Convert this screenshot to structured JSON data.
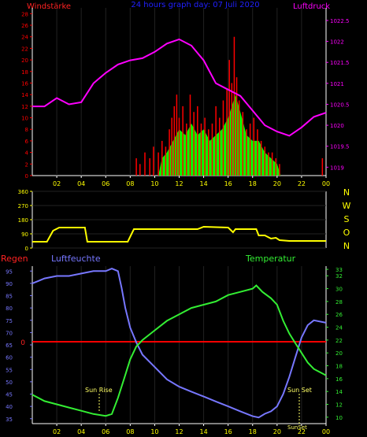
{
  "header": {
    "left_label": "Windstärke",
    "title": "24 hours graph day:  07 Juli 2020",
    "right_label": "Luftdruck"
  },
  "colors": {
    "wind": "#ff0000",
    "gust_fill": "#00ff00",
    "pressure": "#ff00ff",
    "direction": "#ffff00",
    "humidity": "#7777ff",
    "temperature": "#33ee33",
    "rain": "#ff0000",
    "axis": "#ffffff",
    "hour_labels": "#ffff00",
    "title": "#0000ff"
  },
  "x_ticks": [
    "02",
    "04",
    "06",
    "08",
    "10",
    "12",
    "14",
    "16",
    "18",
    "20",
    "22",
    "00"
  ],
  "wind_ticks": [
    "0",
    "2",
    "4",
    "6",
    "8",
    "10",
    "12",
    "14",
    "16",
    "18",
    "20",
    "22",
    "24",
    "26",
    "28"
  ],
  "pressure_ticks": [
    "1019",
    "1019.5",
    "1020",
    "1020.5",
    "1021",
    "1021.5",
    "1022",
    "1022.5"
  ],
  "direction_ticks": [
    "0",
    "90",
    "180",
    "270",
    "360"
  ],
  "direction_letters": [
    "N",
    "W",
    "S",
    "O",
    "N"
  ],
  "legend2": {
    "rain": "Regen",
    "humidity": "Luftfeuchte",
    "temperature": "Temperatur"
  },
  "humidity_ticks": [
    "35",
    "40",
    "45",
    "50",
    "55",
    "60",
    "65",
    "70",
    "75",
    "80",
    "85",
    "90",
    "95"
  ],
  "temp_ticks": [
    "10",
    "12",
    "14",
    "16",
    "18",
    "20",
    "22",
    "24",
    "26",
    "28",
    "30",
    "32",
    "33"
  ],
  "rain_zero_label": "0",
  "annotations": {
    "sunrise": "Sun Rise",
    "sunset": "Sun Set",
    "sunset_bottom": "SunSet"
  },
  "chart_data": [
    {
      "type": "bar+line",
      "title": "24 hours graph day:  07 Juli 2020",
      "x_unit": "hour",
      "xlim": [
        0,
        24
      ],
      "series": [
        {
          "name": "Windstärke",
          "kind": "gust-bars",
          "ylim": [
            0,
            29
          ],
          "points": [
            [
              8.5,
              3
            ],
            [
              8.8,
              2
            ],
            [
              9.2,
              4
            ],
            [
              9.6,
              3
            ],
            [
              9.9,
              5
            ],
            [
              10.3,
              4
            ],
            [
              10.6,
              6
            ],
            [
              10.9,
              5
            ],
            [
              11.2,
              8
            ],
            [
              11.4,
              10
            ],
            [
              11.6,
              12
            ],
            [
              11.8,
              14
            ],
            [
              12.0,
              10
            ],
            [
              12.3,
              12
            ],
            [
              12.6,
              9
            ],
            [
              12.9,
              14
            ],
            [
              13.2,
              11
            ],
            [
              13.5,
              12
            ],
            [
              13.8,
              9
            ],
            [
              14.1,
              10
            ],
            [
              14.4,
              8
            ],
            [
              14.7,
              9
            ],
            [
              15.0,
              12
            ],
            [
              15.3,
              10
            ],
            [
              15.6,
              13
            ],
            [
              15.9,
              15
            ],
            [
              16.1,
              20
            ],
            [
              16.3,
              16
            ],
            [
              16.5,
              24
            ],
            [
              16.7,
              17
            ],
            [
              16.9,
              13
            ],
            [
              17.2,
              11
            ],
            [
              17.5,
              8
            ],
            [
              17.8,
              9
            ],
            [
              18.1,
              10
            ],
            [
              18.4,
              8
            ],
            [
              18.7,
              6
            ],
            [
              19.0,
              5
            ],
            [
              19.3,
              4
            ],
            [
              19.6,
              4
            ],
            [
              19.9,
              3
            ],
            [
              20.2,
              2
            ],
            [
              23.7,
              3
            ]
          ]
        },
        {
          "name": "Windstärke (mittel)",
          "kind": "fill",
          "ylim": [
            0,
            29
          ],
          "points": [
            [
              10.3,
              0
            ],
            [
              10.6,
              3
            ],
            [
              11.0,
              4
            ],
            [
              11.5,
              6
            ],
            [
              12.0,
              8
            ],
            [
              12.5,
              7
            ],
            [
              13.0,
              9
            ],
            [
              13.5,
              7
            ],
            [
              14.0,
              8
            ],
            [
              14.5,
              6
            ],
            [
              15.0,
              7
            ],
            [
              15.5,
              8
            ],
            [
              16.0,
              10
            ],
            [
              16.3,
              12
            ],
            [
              16.6,
              14
            ],
            [
              17.0,
              11
            ],
            [
              17.5,
              7
            ],
            [
              18.0,
              6
            ],
            [
              18.5,
              6
            ],
            [
              19.0,
              4
            ],
            [
              19.5,
              3
            ],
            [
              20.0,
              2
            ],
            [
              20.3,
              0
            ]
          ]
        },
        {
          "name": "Luftdruck",
          "kind": "line",
          "ylim": [
            1018.8,
            1022.8
          ],
          "points": [
            [
              0,
              1020.45
            ],
            [
              1,
              1020.45
            ],
            [
              2,
              1020.65
            ],
            [
              3,
              1020.5
            ],
            [
              4,
              1020.55
            ],
            [
              5,
              1021.0
            ],
            [
              6,
              1021.25
            ],
            [
              7,
              1021.45
            ],
            [
              8,
              1021.55
            ],
            [
              9,
              1021.6
            ],
            [
              10,
              1021.75
            ],
            [
              11,
              1021.95
            ],
            [
              12,
              1022.05
            ],
            [
              13,
              1021.9
            ],
            [
              14,
              1021.55
            ],
            [
              15,
              1021.0
            ],
            [
              16,
              1020.85
            ],
            [
              17,
              1020.7
            ],
            [
              18,
              1020.35
            ],
            [
              19,
              1020.0
            ],
            [
              20,
              1019.85
            ],
            [
              21,
              1019.75
            ],
            [
              22,
              1019.95
            ],
            [
              23,
              1020.2
            ],
            [
              24,
              1020.3
            ]
          ]
        }
      ]
    },
    {
      "type": "line",
      "x_unit": "hour",
      "xlim": [
        0,
        24
      ],
      "ylim": [
        0,
        360
      ],
      "series": [
        {
          "name": "Windrichtung",
          "points": [
            [
              0,
              40
            ],
            [
              1.2,
              40
            ],
            [
              1.7,
              110
            ],
            [
              2.2,
              130
            ],
            [
              4.3,
              130
            ],
            [
              4.5,
              40
            ],
            [
              7.8,
              40
            ],
            [
              8.3,
              120
            ],
            [
              13.5,
              120
            ],
            [
              14.0,
              135
            ],
            [
              16.0,
              130
            ],
            [
              16.4,
              100
            ],
            [
              16.6,
              120
            ],
            [
              18.3,
              120
            ],
            [
              18.5,
              80
            ],
            [
              19.0,
              80
            ],
            [
              19.5,
              60
            ],
            [
              19.9,
              65
            ],
            [
              20.2,
              50
            ],
            [
              21.0,
              45
            ],
            [
              22.0,
              45
            ],
            [
              24,
              45
            ]
          ]
        }
      ]
    },
    {
      "type": "line",
      "x_unit": "hour",
      "xlim": [
        0,
        24
      ],
      "series": [
        {
          "name": "Luftfeuchte",
          "ylim": [
            33,
            97
          ],
          "points": [
            [
              0,
              90
            ],
            [
              0.5,
              91
            ],
            [
              1,
              92
            ],
            [
              2,
              93
            ],
            [
              3,
              93
            ],
            [
              4,
              94
            ],
            [
              5,
              95
            ],
            [
              6,
              95
            ],
            [
              6.5,
              96
            ],
            [
              7.0,
              95
            ],
            [
              7.3,
              88
            ],
            [
              7.6,
              80
            ],
            [
              8.0,
              72
            ],
            [
              8.5,
              66
            ],
            [
              9,
              61
            ],
            [
              10,
              56
            ],
            [
              11,
              51
            ],
            [
              12,
              48
            ],
            [
              13,
              46
            ],
            [
              14,
              44
            ],
            [
              15,
              42
            ],
            [
              16,
              40
            ],
            [
              17,
              38
            ],
            [
              18,
              36
            ],
            [
              18.5,
              35.5
            ],
            [
              19,
              37
            ],
            [
              19.5,
              38
            ],
            [
              20,
              40
            ],
            [
              20.5,
              45
            ],
            [
              21,
              52
            ],
            [
              21.5,
              60
            ],
            [
              22,
              68
            ],
            [
              22.5,
              73
            ],
            [
              23,
              75
            ],
            [
              24,
              74
            ]
          ]
        },
        {
          "name": "Temperatur",
          "ylim": [
            9,
            33.5
          ],
          "points": [
            [
              0,
              13.5
            ],
            [
              1,
              12.5
            ],
            [
              2,
              12.0
            ],
            [
              3,
              11.5
            ],
            [
              4,
              11.0
            ],
            [
              5,
              10.5
            ],
            [
              6,
              10.2
            ],
            [
              6.5,
              10.5
            ],
            [
              7,
              13
            ],
            [
              7.5,
              16
            ],
            [
              8,
              19
            ],
            [
              8.5,
              21
            ],
            [
              9,
              22
            ],
            [
              10,
              23.5
            ],
            [
              11,
              25
            ],
            [
              12,
              26
            ],
            [
              13,
              27
            ],
            [
              14,
              27.5
            ],
            [
              15,
              28
            ],
            [
              16,
              29
            ],
            [
              17,
              29.5
            ],
            [
              18,
              30
            ],
            [
              18.3,
              30.5
            ],
            [
              18.8,
              29.5
            ],
            [
              19.5,
              28.5
            ],
            [
              20,
              27.5
            ],
            [
              20.5,
              25
            ],
            [
              21,
              23
            ],
            [
              21.5,
              21.5
            ],
            [
              22,
              20
            ],
            [
              22.5,
              18.5
            ],
            [
              23,
              17.5
            ],
            [
              24,
              16.5
            ]
          ]
        },
        {
          "name": "Regen",
          "ylim": [
            0,
            1
          ],
          "points": [
            [
              0,
              0
            ],
            [
              24,
              0
            ]
          ]
        }
      ],
      "sunrise_hour": 5.3,
      "sunset_hour": 21.5
    }
  ]
}
